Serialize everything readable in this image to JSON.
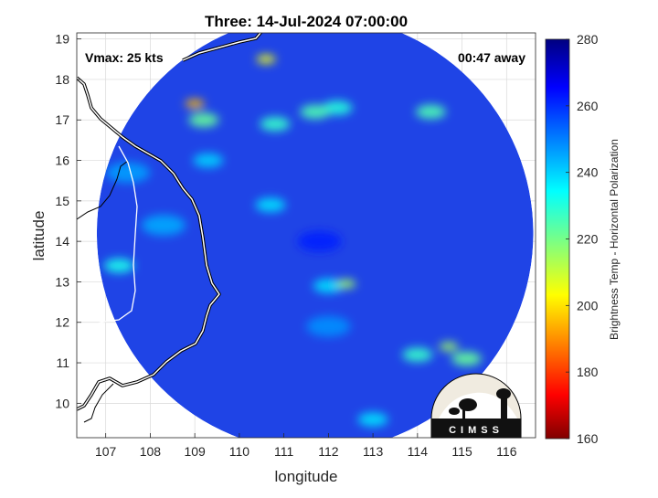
{
  "chart_data": {
    "type": "heatmap",
    "title": "Three: 14-Jul-2024 07:00:00",
    "xlabel": "longitude",
    "ylabel": "latitude",
    "xlim": [
      106.35,
      116.65
    ],
    "ylim": [
      9.15,
      19.15
    ],
    "x_ticks": [
      "107",
      "108",
      "109",
      "110",
      "111",
      "112",
      "113",
      "114",
      "115",
      "116"
    ],
    "y_ticks": [
      "10",
      "11",
      "12",
      "13",
      "14",
      "15",
      "16",
      "17",
      "18",
      "19"
    ],
    "grid": true,
    "annotations": {
      "vmax": "Vmax: 25 kts",
      "away": "00:47 away"
    },
    "swath": {
      "center": [
        111.7,
        14.2
      ],
      "radius_deg": 4.9
    },
    "colorbar": {
      "label": "Brightness Temp - Horizontal Polarization",
      "range": [
        160,
        280
      ],
      "ticks": [
        "160",
        "180",
        "200",
        "220",
        "240",
        "260",
        "280"
      ],
      "colormap": "jet"
    },
    "features": [
      {
        "lon": 111.8,
        "lat": 14.0,
        "value": 262
      },
      {
        "lon": 109.2,
        "lat": 17.0,
        "value": 222
      },
      {
        "lon": 109.0,
        "lat": 17.4,
        "value": 195
      },
      {
        "lon": 111.7,
        "lat": 17.2,
        "value": 225
      },
      {
        "lon": 112.2,
        "lat": 17.3,
        "value": 230
      },
      {
        "lon": 110.8,
        "lat": 16.9,
        "value": 228
      },
      {
        "lon": 114.3,
        "lat": 17.2,
        "value": 225
      },
      {
        "lon": 110.6,
        "lat": 18.5,
        "value": 205
      },
      {
        "lon": 110.7,
        "lat": 14.9,
        "value": 238
      },
      {
        "lon": 107.3,
        "lat": 13.4,
        "value": 232
      },
      {
        "lon": 112.0,
        "lat": 12.9,
        "value": 238
      },
      {
        "lon": 112.4,
        "lat": 12.95,
        "value": 215
      },
      {
        "lon": 112.0,
        "lat": 11.9,
        "value": 248
      },
      {
        "lon": 114.0,
        "lat": 11.2,
        "value": 228
      },
      {
        "lon": 115.1,
        "lat": 11.1,
        "value": 222
      },
      {
        "lon": 114.7,
        "lat": 11.4,
        "value": 215
      },
      {
        "lon": 108.3,
        "lat": 14.4,
        "value": 245
      },
      {
        "lon": 107.5,
        "lat": 15.7,
        "value": 246
      },
      {
        "lon": 109.3,
        "lat": 16.0,
        "value": 240
      },
      {
        "lon": 113.0,
        "lat": 9.6,
        "value": 238
      }
    ]
  },
  "logo": {
    "text": "CIMSS"
  }
}
